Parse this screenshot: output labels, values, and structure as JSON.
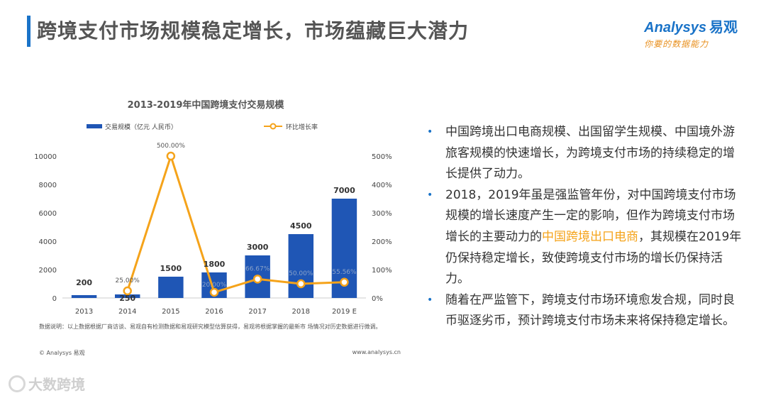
{
  "header": {
    "title": "跨境支付市场规模稳定增长，市场蕴藏巨大潜力",
    "logo_main": "nalysys",
    "logo_prefix": "A",
    "logo_cn": "易观",
    "logo_sub": "你要的数据能力"
  },
  "chart_data": {
    "type": "bar",
    "title": "2013-2019年中国跨境支付交易规模",
    "categories": [
      "2013",
      "2014",
      "2015",
      "2016",
      "2017",
      "2018",
      "2019 E"
    ],
    "series": [
      {
        "name": "交易规模（亿元 人民币）",
        "kind": "bar",
        "axis": "left",
        "values": [
          200,
          250,
          1500,
          1800,
          3000,
          4500,
          7000
        ],
        "labels": [
          "200",
          "250",
          "1500",
          "1800",
          "3000",
          "4500",
          "7000"
        ],
        "color": "#1f56b5"
      },
      {
        "name": "环比增长率",
        "kind": "line",
        "axis": "right",
        "values": [
          null,
          25.0,
          500.0,
          20.0,
          66.67,
          50.0,
          55.56
        ],
        "labels": [
          "",
          "25.00%",
          "500.00%",
          "20.00%",
          "66.67%",
          "50.00%",
          "55.56%"
        ],
        "color": "#f5a31a"
      }
    ],
    "y_left": {
      "min": 0,
      "max": 10000,
      "ticks": [
        "0",
        "2000",
        "4000",
        "6000",
        "8000",
        "10000"
      ]
    },
    "y_right": {
      "min": 0,
      "max": 500,
      "ticks": [
        "0%",
        "100%",
        "200%",
        "300%",
        "400%",
        "500%"
      ]
    },
    "note": "数据说明：以上数据根据厂商访谈、易观自有检测数据和易观研究模型估算获得，易观将根据掌握的最新市 场情况对历史数据进行微调。",
    "copyright": "© Analysys 易观",
    "site": "www.analysys.cn"
  },
  "bullets": [
    {
      "text": "中国跨境出口电商规模、出国留学生规模、中国境外游旅客规模的快速增长，为跨境支付市场的持续稳定的增长提供了动力。"
    },
    {
      "pre": "2018，2019年虽是强监管年份，对中国跨境支付市场规模的增长速度产生一定的影响，但作为跨境支付市场增长的主要动力的",
      "highlight": "中国跨境出口电商",
      "post": "，其规模在2019年仍保持稳定增长，致使跨境支付市场的增长仍保持活力。"
    },
    {
      "text": "随着在严监管下，跨境支付市场环境愈发合规，同时良币驱逐劣币，预计跨境支付市场未来将保持稳定增长。"
    }
  ],
  "bullet_marker": "•",
  "watermark": "大数跨境",
  "colors": {
    "accent": "#1a73c8",
    "bar": "#1f56b5",
    "line": "#f5a31a",
    "highlight": "#f5a31a"
  }
}
